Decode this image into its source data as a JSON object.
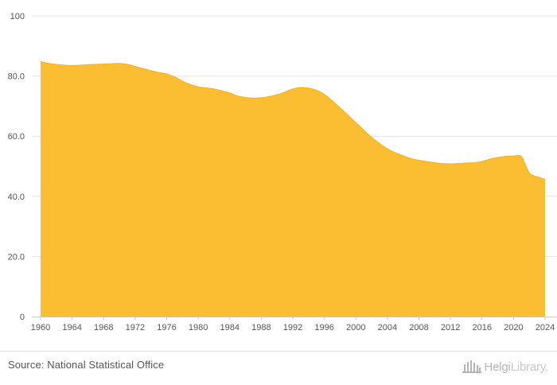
{
  "chart_data": {
    "type": "area",
    "title": "",
    "xlabel": "",
    "ylabel": "",
    "x": [
      1960,
      1961,
      1962,
      1963,
      1964,
      1965,
      1966,
      1967,
      1968,
      1969,
      1970,
      1971,
      1972,
      1973,
      1974,
      1975,
      1976,
      1977,
      1978,
      1979,
      1980,
      1981,
      1982,
      1983,
      1984,
      1985,
      1986,
      1987,
      1988,
      1989,
      1990,
      1991,
      1992,
      1993,
      1994,
      1995,
      1996,
      1997,
      1998,
      1999,
      2000,
      2001,
      2002,
      2003,
      2004,
      2005,
      2006,
      2007,
      2008,
      2009,
      2010,
      2011,
      2012,
      2013,
      2014,
      2015,
      2016,
      2017,
      2018,
      2019,
      2020,
      2021,
      2022,
      2023,
      2024
    ],
    "values": [
      84.8,
      84.2,
      83.9,
      83.6,
      83.5,
      83.6,
      83.8,
      83.9,
      84.0,
      84.1,
      84.2,
      83.9,
      83.2,
      82.5,
      81.8,
      81.2,
      80.7,
      79.7,
      78.3,
      77.2,
      76.4,
      76.1,
      75.7,
      75.1,
      74.4,
      73.4,
      72.9,
      72.7,
      72.8,
      73.2,
      73.8,
      74.7,
      75.7,
      76.2,
      76.0,
      75.3,
      73.9,
      71.8,
      69.4,
      67.0,
      64.5,
      62.0,
      59.6,
      57.6,
      55.8,
      54.5,
      53.5,
      52.6,
      52.0,
      51.6,
      51.2,
      50.9,
      50.8,
      50.9,
      51.1,
      51.2,
      51.6,
      52.4,
      52.9,
      53.3,
      53.4,
      53.2,
      47.8,
      46.5,
      45.6
    ],
    "ylim": [
      0,
      100
    ],
    "yticks": [
      "0",
      "20.0",
      "40.0",
      "60.0",
      "80.0",
      "100"
    ],
    "xticks": [
      "1960",
      "1964",
      "1968",
      "1972",
      "1976",
      "1980",
      "1984",
      "1988",
      "1992",
      "1996",
      "2000",
      "2004",
      "2008",
      "2012",
      "2016",
      "2020",
      "2024"
    ],
    "color": "#fbbe33",
    "grid": true
  },
  "footer": {
    "source": "Source: National Statistical Office",
    "logo_main": "Helgi",
    "logo_suffix": "Library."
  },
  "icons": {
    "logo": "library-building-icon"
  }
}
